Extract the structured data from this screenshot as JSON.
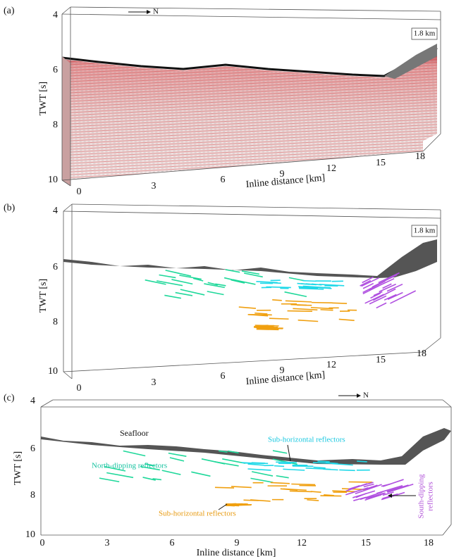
{
  "panels": [
    {
      "label": "(a)",
      "north": "N",
      "width_label": "1.8 km",
      "y_axis_label": "TWT [s]",
      "x_axis_label": "Inline distance [km]",
      "yticks": [
        4,
        6,
        8,
        10
      ],
      "xticks": [
        0,
        3,
        6,
        9,
        12,
        15,
        18
      ]
    },
    {
      "label": "(b)",
      "width_label": "1.8 km",
      "y_axis_label": "TWT [s]",
      "x_axis_label": "Inline distance [km]",
      "yticks": [
        4,
        6,
        8,
        10
      ],
      "xticks": [
        0,
        3,
        6,
        9,
        12,
        15,
        18
      ]
    },
    {
      "label": "(c)",
      "north": "N",
      "y_axis_label": "TWT [s]",
      "x_axis_label": "Inline distance [km]",
      "yticks": [
        4,
        6,
        8,
        10
      ],
      "xticks": [
        0,
        3,
        6,
        9,
        12,
        15,
        18
      ],
      "annotations": {
        "seafloor": "Seafloor",
        "north_dipping": "North-dipping reflectors",
        "sub_horizontal_upper": "Sub-horizontal reflectors",
        "sub_horizontal_lower": "Sub-horizontal reflectors",
        "south_dipping": [
          "South-dipping",
          "reflectors"
        ]
      }
    }
  ]
}
